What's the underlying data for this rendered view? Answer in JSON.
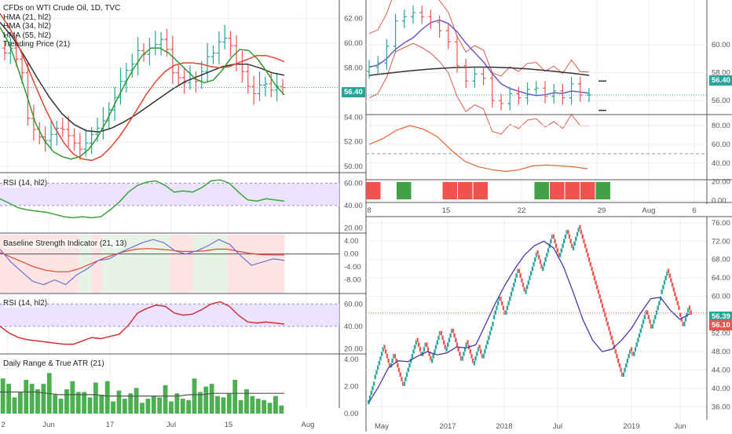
{
  "colors": {
    "bg": "#ffffff",
    "grid": "#eeeeee",
    "border": "#555555",
    "up": "#26a69a",
    "down": "#ef5350",
    "hma21": "#2e9a2e",
    "hma34": "#e8432e",
    "hma55": "#333333",
    "trend": "#26a69a",
    "rsi_line_green": "#3aa63a",
    "rsi_line_red": "#d32f2f",
    "rsi_band": "#e7dcff",
    "bsi_fast": "#6f6fd6",
    "bsi_slow": "#e8432e",
    "bsi_green_zone": "#e6f4e6",
    "bsi_red_zone": "#fde4e4",
    "price_tag_bg": "#26a69a",
    "price_tag_red": "#ef5350",
    "band_upper": "#e05a4a",
    "band_lower": "#e05a4a",
    "band_mid": "#6a5acd",
    "pivot": "#333333"
  },
  "legend": {
    "title": "CFDs on WTI Crude Oil, 1D, TVC",
    "l1": "HMA (21, hl2)",
    "l2": "HMA (34, hl2)",
    "l3": "HMA (55, hl2)",
    "l4": "Trending Price (21)"
  },
  "labels": {
    "rsi1": "RSI (14, hl2)",
    "bsi": "Baseline Strength Indicator (21, 13)",
    "rsi2": "RSI (14, hl2)",
    "atr": "Daily Range & True ATR (21)",
    "price_tag_left": "56.40",
    "price_tag_tr": "56.40",
    "price_tag_br1": "56.39",
    "price_tag_br2": "56.10"
  },
  "chart_data": [
    {
      "id": "main-price",
      "type": "candlestick",
      "ylim": [
        49.5,
        63.5
      ],
      "yticks": [
        "62.00",
        "60.00",
        "58.00",
        "56.00",
        "54.00",
        "52.00",
        "50.00"
      ],
      "xlabels": [
        "2",
        "Jun",
        "17",
        "Jul",
        "15",
        "Aug"
      ],
      "close": [
        59.2,
        59.6,
        58.7,
        57.6,
        53.9,
        53.0,
        52.4,
        52.1,
        52.6,
        53.1,
        53.0,
        52.5,
        51.9,
        51.4,
        51.9,
        52.6,
        53.1,
        53.7,
        54.6,
        55.6,
        56.9,
        57.8,
        58.3,
        59.4,
        59.1,
        59.6,
        59.9,
        60.3,
        59.5,
        57.6,
        57.2,
        56.8,
        57.1,
        56.9,
        57.7,
        58.9,
        59.2,
        60.1,
        60.4,
        59.8,
        58.3,
        57.7,
        56.5,
        55.9,
        56.6,
        56.7,
        56.2,
        56.5,
        56.4
      ],
      "hma21": [
        61.3,
        60.0,
        58.0,
        55.8,
        53.5,
        52.1,
        51.2,
        50.8,
        50.6,
        50.8,
        51.4,
        52.4,
        53.7,
        55.2,
        56.6,
        57.9,
        59.0,
        59.6,
        59.6,
        59.2,
        58.5,
        57.8,
        57.1,
        56.8,
        57.0,
        57.8,
        58.8,
        59.5,
        59.4,
        58.7,
        57.7,
        56.6,
        55.8
      ],
      "hma34": [
        62.4,
        61.3,
        59.8,
        58.1,
        56.3,
        54.6,
        53.1,
        51.9,
        51.0,
        50.6,
        50.5,
        50.8,
        51.5,
        52.4,
        53.5,
        54.7,
        55.9,
        56.9,
        57.7,
        58.2,
        58.4,
        58.4,
        58.3,
        58.1,
        58.0,
        58.1,
        58.4,
        58.7,
        59.0,
        59.0,
        58.8,
        58.5
      ],
      "hma55": [
        61.7,
        60.5,
        58.9,
        57.2,
        55.6,
        54.3,
        53.4,
        52.9,
        52.8,
        53.1,
        53.6,
        54.2,
        54.9,
        55.6,
        56.3,
        56.9,
        57.3,
        57.7,
        58.1,
        58.3,
        58.3,
        58.0,
        57.6,
        57.4
      ]
    },
    {
      "id": "rsi-top",
      "type": "line",
      "ylim": [
        16,
        68
      ],
      "yticks": [
        "60.00",
        "40.00",
        "20.00"
      ],
      "band": [
        40,
        60
      ],
      "values": [
        46,
        42,
        38,
        36,
        35,
        34,
        32,
        30,
        29,
        30,
        29,
        30,
        36,
        43,
        52,
        58,
        61,
        62,
        58,
        52,
        53,
        52,
        56,
        62,
        63,
        60,
        52,
        45,
        44,
        46,
        45,
        44
      ]
    },
    {
      "id": "bsi",
      "type": "line",
      "ylim": [
        -12,
        6
      ],
      "yticks": [
        "4.00",
        "0.00",
        "-4.00",
        "-8.00"
      ],
      "fast": [
        1.5,
        -2.5,
        -5.5,
        -8.5,
        -9.5,
        -8.0,
        -9.5,
        -6.5,
        -4.5,
        -2.0,
        -1.5,
        0.5,
        2.0,
        3.5,
        4.5,
        3.5,
        1.0,
        0.0,
        1.0,
        2.5,
        4.5,
        3.0,
        -0.5,
        -3.5,
        -2.5,
        -1.5,
        -2.0
      ],
      "slow": [
        0.5,
        -1.0,
        -2.5,
        -4.0,
        -5.0,
        -5.5,
        -5.5,
        -4.5,
        -3.0,
        -1.5,
        -0.2,
        0.8,
        1.5,
        1.7,
        1.5,
        1.2,
        0.8,
        0.8,
        1.0,
        1.5,
        1.5,
        0.8,
        0.2,
        -0.2,
        -0.3,
        -0.3
      ],
      "zones": [
        "red",
        "red",
        "red",
        "red",
        "red",
        "red",
        "red",
        "green",
        "red",
        "green",
        "green",
        "green",
        "green",
        "green",
        "green",
        "red",
        "red",
        "green",
        "green",
        "green",
        "red",
        "red",
        "red",
        "red",
        "red"
      ]
    },
    {
      "id": "rsi-bottom",
      "type": "line",
      "ylim": [
        16,
        68
      ],
      "yticks": [
        "60.00",
        "40.00",
        "20.00"
      ],
      "band": [
        40,
        60
      ],
      "values": [
        40,
        34,
        30,
        28,
        27,
        26,
        25,
        24,
        24,
        27,
        30,
        29,
        31,
        33,
        41,
        52,
        56,
        59,
        58,
        52,
        50,
        51,
        55,
        60,
        62,
        58,
        50,
        44,
        43,
        44,
        43,
        42
      ]
    },
    {
      "id": "atr",
      "type": "bar",
      "ylim": [
        0,
        4.3
      ],
      "yticks": [
        "4.00",
        "2.00",
        "0.00"
      ],
      "values": [
        2.6,
        2.2,
        1.2,
        1.6,
        2.5,
        2.2,
        1.8,
        2.2,
        3.0,
        1.4,
        1.1,
        1.8,
        2.4,
        1.6,
        1.6,
        1.2,
        2.3,
        1.4,
        2.4,
        0.9,
        1.7,
        1.1,
        1.5,
        1.9,
        0.8,
        1.1,
        1.3,
        1.2,
        2.1,
        0.9,
        1.5,
        1.1,
        1.0,
        2.6,
        1.6,
        2.0,
        2.2,
        1.3,
        1.2,
        1.5,
        2.5,
        1.0,
        1.8,
        1.3,
        1.1,
        1.0,
        0.8,
        1.3,
        0.6
      ],
      "atr": [
        1.6,
        1.6,
        1.6,
        1.6,
        1.5,
        1.4,
        1.4,
        1.4,
        1.4,
        1.3,
        1.3,
        1.3,
        1.3,
        1.3,
        1.3,
        1.3,
        1.4,
        1.4,
        1.5,
        1.5,
        1.5,
        1.5,
        1.5,
        1.5,
        1.5
      ]
    },
    {
      "id": "tr-price",
      "type": "candlestick",
      "ylim": [
        55,
        63.2
      ],
      "yticks": [
        "60.00",
        "58.00",
        "56.00"
      ],
      "close": [
        58.4,
        58.7,
        59.9,
        61.7,
        62.0,
        62.3,
        62.0,
        61.6,
        61.0,
        60.2,
        58.5,
        57.4,
        57.9,
        57.6,
        56.0,
        55.8,
        56.5,
        56.2,
        56.8,
        56.9,
        56.3,
        56.7,
        56.2,
        57.2,
        56.4,
        56.4
      ]
    },
    {
      "id": "tr-osc",
      "type": "line",
      "ylim": [
        -2,
        90
      ],
      "yticks": [
        "80.00",
        "60.00",
        "40.00",
        "20.00",
        "0.00"
      ],
      "values": [
        60,
        66,
        75,
        80,
        76,
        68,
        54,
        42,
        36,
        33,
        31,
        33,
        37,
        38,
        37,
        36,
        34
      ]
    },
    {
      "id": "tr-strip",
      "type": "bar",
      "colors": [
        "red",
        "none",
        "green",
        "none",
        "none",
        "red",
        "red",
        "red",
        "none",
        "none",
        "none",
        "green",
        "red",
        "red",
        "red",
        "green"
      ]
    },
    {
      "id": "renko",
      "type": "renko",
      "ylim": [
        34,
        77
      ],
      "yticks": [
        "76.00",
        "72.00",
        "68.00",
        "64.00",
        "60.00",
        "56.00",
        "52.00",
        "48.00",
        "44.00",
        "40.00",
        "36.00"
      ],
      "xlabels": [
        "May",
        "2017",
        "2018",
        "Jul",
        "2019",
        "Jun"
      ],
      "path": [
        36.5,
        42.0,
        49.5,
        44.5,
        47.5,
        40.5,
        45.5,
        51.0,
        47.0,
        50.0,
        45.5,
        52.5,
        48.0,
        53.0,
        46.0,
        50.5,
        45.0,
        49.5,
        46.5,
        55.0,
        60.0,
        56.0,
        66.0,
        60.5,
        70.0,
        65.5,
        73.5,
        68.5,
        74.5,
        70.0,
        75.5,
        62.5,
        55.5,
        44.5,
        42.5,
        49.0,
        47.0,
        57.0,
        53.0,
        60.5,
        66.0,
        56.5,
        53.5,
        58.0,
        56.0
      ],
      "ma": [
        37.0,
        40.5,
        44.5,
        46.0,
        45.8,
        47.0,
        48.0,
        47.3,
        47.7,
        49.0,
        48.8,
        49.5,
        54.0,
        58.5,
        62.5,
        66.0,
        69.0,
        71.0,
        72.0,
        70.5,
        66.5,
        61.0,
        55.0,
        50.5,
        48.0,
        48.5,
        50.5,
        53.0,
        56.5,
        59.5,
        59.8,
        57.0,
        55.0,
        56.2
      ]
    }
  ]
}
